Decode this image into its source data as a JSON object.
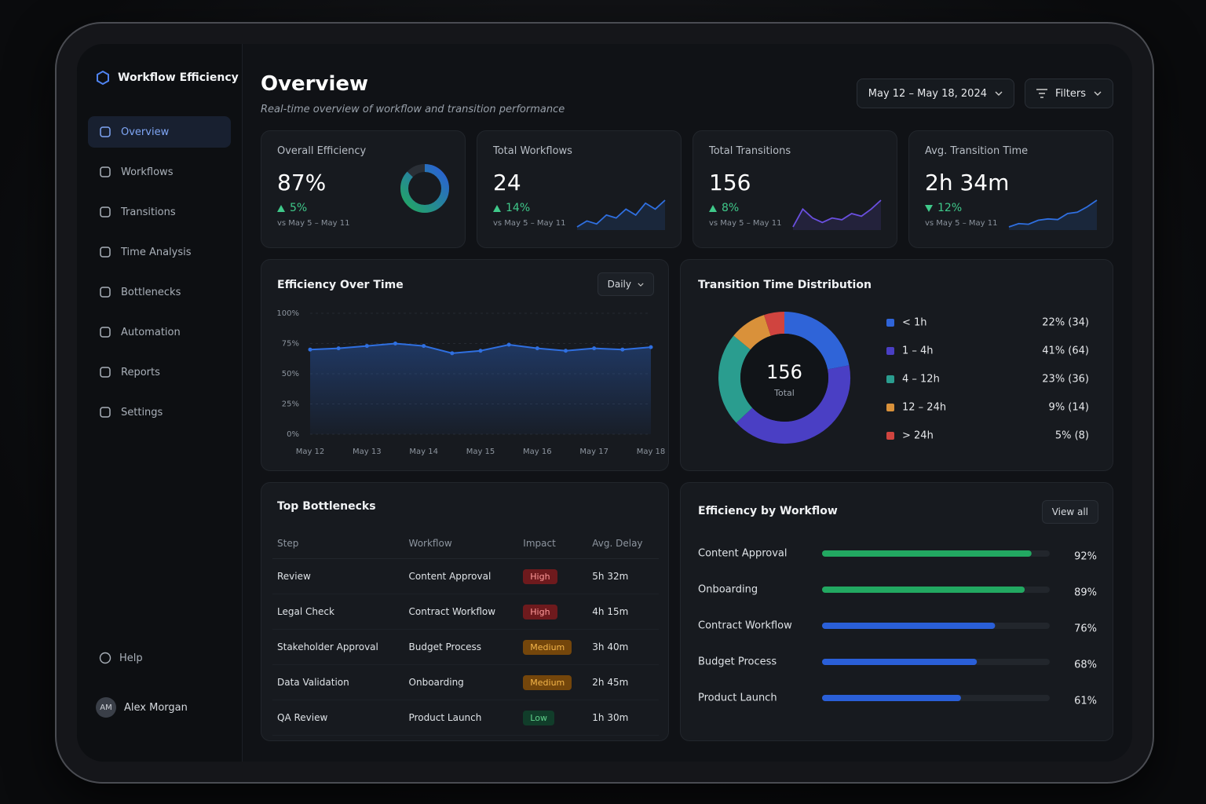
{
  "sidebar": {
    "brand": "Workflow Efficiency",
    "nav": [
      "Overview",
      "Workflows",
      "Transitions",
      "Time Analysis",
      "Bottlenecks",
      "Automation",
      "Reports",
      "Settings"
    ],
    "help": "Help",
    "user": {
      "initials": "AM",
      "name": "Alex Morgan"
    }
  },
  "header": {
    "title": "Overview",
    "subtitle": "Real-time overview of workflow and transition performance",
    "date_range": "May 12 – May 18, 2024",
    "filters": "Filters"
  },
  "kpis": [
    {
      "label": "Overall Efficiency",
      "value": 87,
      "value_label": "87%",
      "change": "5%",
      "trend": "up",
      "period": "vs May 5 – May 11"
    },
    {
      "label": "Total Workflows",
      "value": "24",
      "change": "14%",
      "trend": "up",
      "period": "vs May 5 – May 11",
      "sparkline": [
        3,
        4,
        3.5,
        5,
        4.5,
        6,
        5,
        7,
        6,
        7.5
      ],
      "sparkline_color": "#2f6fe0"
    },
    {
      "label": "Total Transitions",
      "value": "156",
      "change": "8%",
      "trend": "up",
      "period": "vs May 5 – May 11",
      "sparkline": [
        3,
        5,
        4,
        3.5,
        4,
        3.8,
        4.5,
        4.2,
        5,
        6
      ],
      "sparkline_color": "#6a4fe0"
    },
    {
      "label": "Avg. Transition Time",
      "value": "2h 34m",
      "change": "12%",
      "trend": "down",
      "period": "vs May 5 – May 11",
      "sparkline": [
        3,
        3.5,
        3.4,
        4,
        4.2,
        4.1,
        5,
        5.2,
        6,
        7
      ],
      "sparkline_color": "#2f6fe0"
    }
  ],
  "chart_data": [
    {
      "type": "line",
      "title": "Efficiency Over Time",
      "control": "Daily",
      "categories": [
        "May 12",
        null,
        "May 13",
        null,
        "May 14",
        null,
        "May 15",
        null,
        "May 16",
        null,
        "May 17",
        null,
        "May 18"
      ],
      "values": [
        70,
        71,
        73,
        75,
        73,
        67,
        69,
        74,
        71,
        69,
        71,
        70,
        72
      ],
      "color": "#2f6fe0",
      "ylim": [
        0,
        100
      ],
      "yticks": [
        {
          "value": 0,
          "label": "0%"
        },
        {
          "value": 25,
          "label": "25%"
        },
        {
          "value": 50,
          "label": "50%"
        },
        {
          "value": 75,
          "label": "75%"
        },
        {
          "value": 100,
          "label": "100%"
        }
      ],
      "grid": true
    },
    {
      "type": "pie",
      "donut": true,
      "title": "Transition Time Distribution",
      "center_value": "156",
      "center_label": "Total",
      "categories": [
        "< 1h",
        "1 – 4h",
        "4 – 12h",
        "12 – 24h",
        "> 24h"
      ],
      "values": [
        22,
        41,
        23,
        9,
        5
      ],
      "value_labels": [
        "22% (34)",
        "41% (64)",
        "23% (36)",
        "9% (14)",
        "5% (8)"
      ],
      "colors": [
        "#2f64d8",
        "#4a3fc4",
        "#2a9d8f",
        "#d9913a",
        "#d0443f"
      ]
    },
    {
      "type": "bar",
      "orientation": "horizontal",
      "title": "Efficiency by Workflow",
      "action": "View all",
      "categories": [
        "Content Approval",
        "Onboarding",
        "Contract Workflow",
        "Budget Process",
        "Product Launch"
      ],
      "values": [
        92,
        89,
        76,
        68,
        61
      ],
      "value_labels": [
        "92%",
        "89%",
        "76%",
        "68%",
        "61%"
      ],
      "colors": [
        "#22a861",
        "#22a861",
        "#2a5fd8",
        "#2a5fd8",
        "#2a5fd8"
      ],
      "xlim": [
        0,
        100
      ]
    }
  ],
  "table": {
    "title": "Top Bottlenecks",
    "columns": [
      "Step",
      "Workflow",
      "Impact",
      "Avg. Delay"
    ],
    "rows": [
      [
        "Review",
        "Content Approval",
        "High",
        "5h 32m"
      ],
      [
        "Legal Check",
        "Contract Workflow",
        "High",
        "4h 15m"
      ],
      [
        "Stakeholder Approval",
        "Budget Process",
        "Medium",
        "3h 40m"
      ],
      [
        "Data Validation",
        "Onboarding",
        "Medium",
        "2h 45m"
      ],
      [
        "QA Review",
        "Product Launch",
        "Low",
        "1h 30m"
      ]
    ],
    "impact_styles": {
      "High": {
        "bg": "#6e1a1d",
        "fg": "#ff9a9a"
      },
      "Medium": {
        "bg": "#74460b",
        "fg": "#f5b64a"
      },
      "Low": {
        "bg": "#113d2a",
        "fg": "#5fd08a"
      }
    }
  }
}
